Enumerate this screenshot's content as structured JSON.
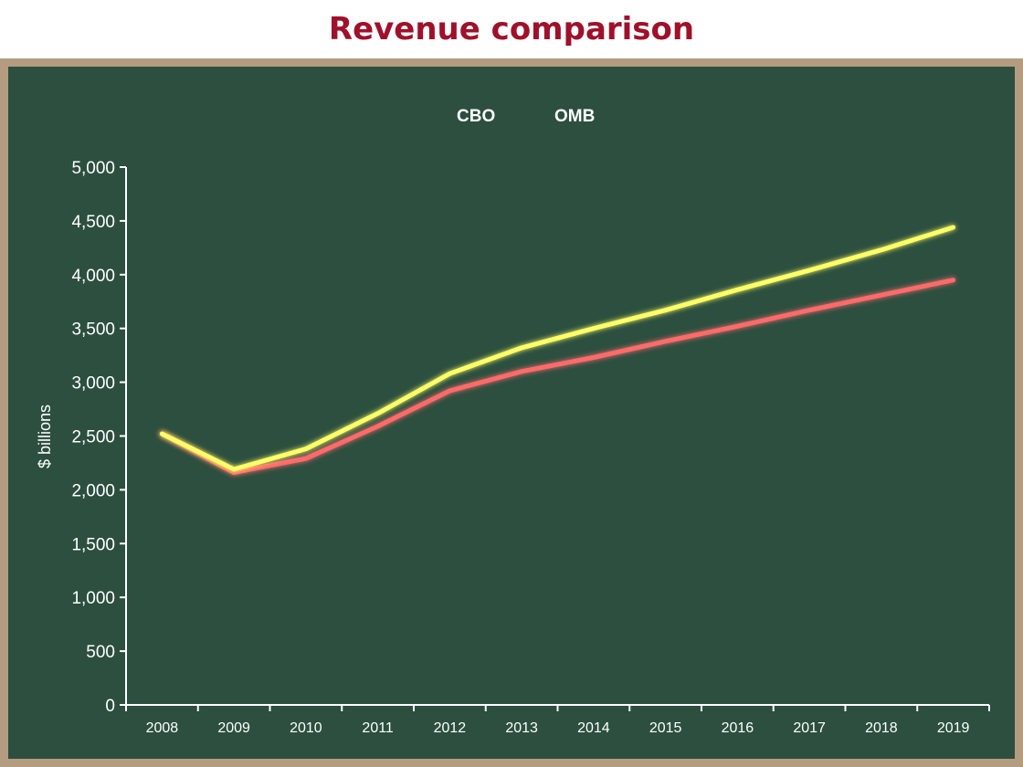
{
  "title": "Revenue comparison",
  "colors": {
    "title": "#a0102a",
    "board": "#2c4f3f",
    "frame": "#b39c80",
    "axis": "#ffffff"
  },
  "chart_data": {
    "type": "line",
    "title": "Revenue comparison",
    "xlabel": "",
    "ylabel": "$ billions",
    "x": [
      "2008",
      "2009",
      "2010",
      "2011",
      "2012",
      "2013",
      "2014",
      "2015",
      "2016",
      "2017",
      "2018",
      "2019"
    ],
    "ylim": [
      0,
      5000
    ],
    "yticks": [
      0,
      500,
      1000,
      1500,
      2000,
      2500,
      3000,
      3500,
      4000,
      4500,
      5000
    ],
    "ytick_labels": [
      "0",
      "500",
      "1,000",
      "1,500",
      "2,000",
      "2,500",
      "3,000",
      "3,500",
      "4,000",
      "4,500",
      "5,000"
    ],
    "legend_position": "top-center",
    "grid": false,
    "series": [
      {
        "name": "CBO",
        "color": "#ff6b6b",
        "values": [
          2520,
          2160,
          2290,
          2590,
          2920,
          3100,
          3230,
          3380,
          3520,
          3670,
          3810,
          3950
        ]
      },
      {
        "name": "OMB",
        "color": "#ffff66",
        "values": [
          2520,
          2190,
          2380,
          2710,
          3080,
          3320,
          3500,
          3670,
          3860,
          4040,
          4230,
          4440
        ]
      }
    ]
  }
}
